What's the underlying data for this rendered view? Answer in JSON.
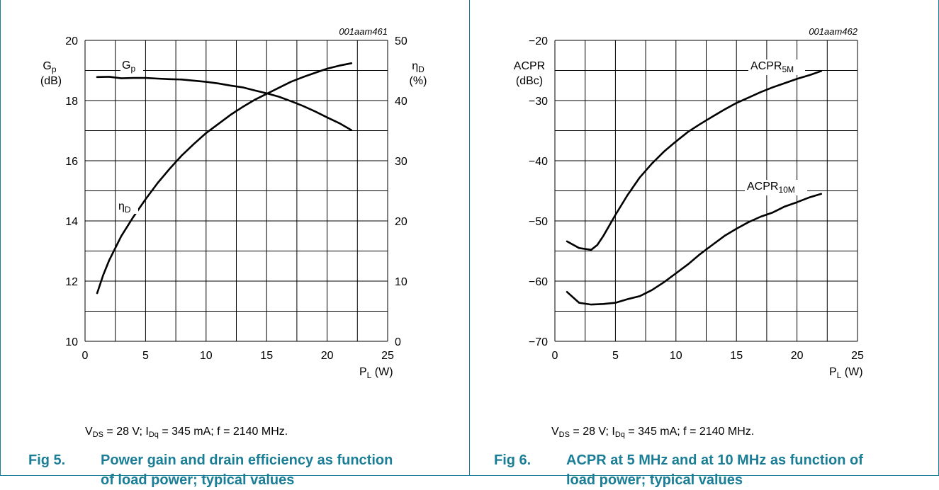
{
  "colors": {
    "accent": "#1a7e96",
    "grid": "#000000",
    "curve": "#000000"
  },
  "figures": [
    {
      "number": "Fig 5.",
      "caption": "Power gain and drain efficiency as function of load power; typical values",
      "figure_id": "001aam461",
      "left_axis_label": [
        "G",
        "p",
        "(dB)"
      ],
      "right_axis_label": [
        "η",
        "D",
        "(%)"
      ],
      "x_axis_label": [
        "P",
        "L",
        " (W)"
      ],
      "conditions": {
        "v": "V",
        "v_sub": "DS",
        "v_text": " = 28 V; I",
        "i_sub": "Dq",
        "rest": " = 345 mA; f = 2140 MHz."
      },
      "curve_labels": [
        {
          "main": "G",
          "sub": "p"
        },
        {
          "main": "η",
          "sub": "D"
        }
      ]
    },
    {
      "number": "Fig 6.",
      "caption": "ACPR at 5 MHz and at 10 MHz as function of load power; typical values",
      "figure_id": "001aam462",
      "left_axis_label": [
        "ACPR",
        "",
        "(dBc)"
      ],
      "x_axis_label": [
        "P",
        "L",
        " (W)"
      ],
      "conditions": {
        "v": "V",
        "v_sub": "DS",
        "v_text": " = 28 V; I",
        "i_sub": "Dq",
        "rest": " = 345 mA; f = 2140 MHz."
      },
      "curve_labels": [
        {
          "main": "ACPR",
          "sub": "5M"
        },
        {
          "main": "ACPR",
          "sub": "10M"
        }
      ]
    }
  ],
  "chart_data": [
    {
      "type": "line",
      "xlim": [
        0,
        25
      ],
      "x_ticks": [
        "0",
        "5",
        "10",
        "15",
        "20",
        "25"
      ],
      "y_left": {
        "lim": [
          10,
          20
        ],
        "ticks": [
          "10",
          "12",
          "14",
          "16",
          "18",
          "20"
        ]
      },
      "y_right": {
        "lim": [
          0,
          50
        ],
        "ticks": [
          "0",
          "10",
          "20",
          "30",
          "40",
          "50"
        ]
      },
      "grid": true,
      "series": [
        {
          "name": "Gp",
          "axis": "left",
          "x": [
            1,
            2,
            3,
            4,
            5,
            6,
            7,
            8,
            9,
            10,
            11,
            12,
            13,
            14,
            15,
            16,
            17,
            18,
            19,
            20,
            21,
            22
          ],
          "y": [
            18.78,
            18.79,
            18.74,
            18.75,
            18.75,
            18.73,
            18.71,
            18.7,
            18.66,
            18.62,
            18.57,
            18.5,
            18.44,
            18.34,
            18.24,
            18.13,
            17.98,
            17.82,
            17.64,
            17.44,
            17.25,
            17.02
          ]
        },
        {
          "name": "ηD",
          "axis": "right",
          "x": [
            1,
            1.5,
            2,
            3,
            4,
            5,
            6,
            7,
            8,
            9,
            10,
            11,
            12,
            13,
            14,
            15,
            16,
            17,
            18,
            19,
            20,
            21,
            22
          ],
          "y": [
            8,
            11,
            13.5,
            17.5,
            20.7,
            23.6,
            26.3,
            28.7,
            30.9,
            32.8,
            34.6,
            36.1,
            37.6,
            38.9,
            40.1,
            41.1,
            42.1,
            43.1,
            43.9,
            44.6,
            45.3,
            45.8,
            46.2
          ]
        }
      ]
    },
    {
      "type": "line",
      "xlim": [
        0,
        25
      ],
      "x_ticks": [
        "0",
        "5",
        "10",
        "15",
        "20",
        "25"
      ],
      "y_left": {
        "lim": [
          -70,
          -20
        ],
        "ticks": [
          "−70",
          "−60",
          "−50",
          "−40",
          "−30",
          "−20"
        ]
      },
      "grid": true,
      "series": [
        {
          "name": "ACPR5M",
          "axis": "left",
          "x": [
            1,
            2,
            3,
            3.5,
            4,
            5,
            6,
            7,
            8,
            9,
            10,
            11,
            12,
            13,
            14,
            15,
            16,
            17,
            18,
            19,
            20,
            21,
            22
          ],
          "y": [
            -53.4,
            -54.5,
            -54.8,
            -54,
            -52.5,
            -49,
            -45.7,
            -42.8,
            -40.5,
            -38.5,
            -36.8,
            -35.2,
            -33.9,
            -32.7,
            -31.5,
            -30.4,
            -29.5,
            -28.6,
            -27.8,
            -27.1,
            -26.4,
            -25.8,
            -25.1
          ]
        },
        {
          "name": "ACPR10M",
          "axis": "left",
          "x": [
            1,
            2,
            3,
            4,
            5,
            6,
            7,
            8,
            9,
            10,
            11,
            12,
            13,
            14,
            15,
            16,
            17,
            18,
            19,
            20,
            21,
            22
          ],
          "y": [
            -61.8,
            -63.6,
            -63.9,
            -63.8,
            -63.6,
            -63.0,
            -62.5,
            -61.5,
            -60.2,
            -58.7,
            -57.2,
            -55.5,
            -54.0,
            -52.5,
            -51.3,
            -50.2,
            -49.3,
            -48.6,
            -47.6,
            -46.9,
            -46.1,
            -45.5
          ]
        }
      ]
    }
  ]
}
